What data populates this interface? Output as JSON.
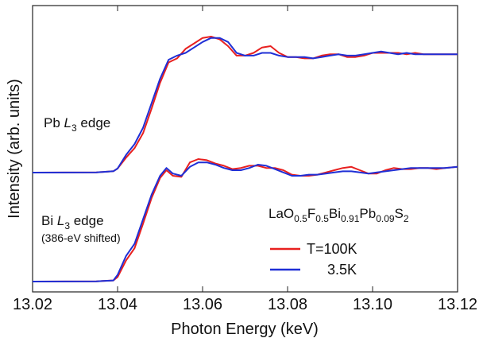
{
  "chart_data": {
    "type": "line",
    "xlabel": "Photon Energy (keV)",
    "ylabel": "Intensity (arb. units)",
    "xlim": [
      13.02,
      13.12
    ],
    "x_ticks": [
      "13.02",
      "13.04",
      "13.06",
      "13.08",
      "13.10",
      "13.12"
    ],
    "y_ticks_visible": false,
    "grid": false,
    "annotations": {
      "pb_main": "Pb ",
      "pb_sub": "3",
      "pb_L": "L",
      "pb_rest": " edge",
      "bi_main": "Bi ",
      "bi_L": "L",
      "bi_sub": "3",
      "bi_rest": " edge",
      "bi_note": "(386-eV shifted)",
      "formula": [
        {
          "t": "LaO",
          "sub": false
        },
        {
          "t": "0.5",
          "sub": true
        },
        {
          "t": "F",
          "sub": false
        },
        {
          "t": "0.5",
          "sub": true
        },
        {
          "t": "Bi",
          "sub": false
        },
        {
          "t": "0.91",
          "sub": true
        },
        {
          "t": "Pb",
          "sub": false
        },
        {
          "t": "0.09",
          "sub": true
        },
        {
          "t": "S",
          "sub": false
        },
        {
          "t": "2",
          "sub": true
        }
      ]
    },
    "legend": [
      {
        "label": "T=100K",
        "color": "#e8201f"
      },
      {
        "label": "3.5K",
        "color": "#1f2fd6"
      }
    ],
    "series": [
      {
        "name": "T=100K",
        "edge": "Pb",
        "color": "#e8201f",
        "x": [
          13.02,
          13.035,
          13.039,
          13.04,
          13.042,
          13.044,
          13.046,
          13.048,
          13.05,
          13.052,
          13.054,
          13.056,
          13.058,
          13.06,
          13.062,
          13.064,
          13.066,
          13.068,
          13.07,
          13.072,
          13.074,
          13.076,
          13.078,
          13.08,
          13.082,
          13.084,
          13.086,
          13.088,
          13.09,
          13.092,
          13.094,
          13.096,
          13.098,
          13.1,
          13.102,
          13.104,
          13.106,
          13.108,
          13.11,
          13.112,
          13.114,
          13.116,
          13.118,
          13.12
        ],
        "y": [
          0.0,
          0.002,
          0.01,
          0.03,
          0.11,
          0.18,
          0.29,
          0.47,
          0.66,
          0.81,
          0.84,
          0.91,
          0.95,
          0.99,
          1.0,
          0.98,
          0.93,
          0.86,
          0.86,
          0.88,
          0.92,
          0.93,
          0.88,
          0.85,
          0.85,
          0.84,
          0.84,
          0.86,
          0.87,
          0.87,
          0.85,
          0.85,
          0.86,
          0.88,
          0.88,
          0.88,
          0.88,
          0.87,
          0.88,
          0.87,
          0.87,
          0.87,
          0.87,
          0.87
        ]
      },
      {
        "name": "3.5K",
        "edge": "Pb",
        "color": "#1f2fd6",
        "x": [
          13.02,
          13.035,
          13.039,
          13.04,
          13.042,
          13.044,
          13.046,
          13.048,
          13.05,
          13.052,
          13.054,
          13.056,
          13.058,
          13.06,
          13.062,
          13.064,
          13.066,
          13.068,
          13.07,
          13.072,
          13.074,
          13.076,
          13.078,
          13.08,
          13.082,
          13.084,
          13.086,
          13.088,
          13.09,
          13.092,
          13.094,
          13.096,
          13.098,
          13.1,
          13.102,
          13.104,
          13.106,
          13.108,
          13.11,
          13.112,
          13.114,
          13.116,
          13.118,
          13.12
        ],
        "y": [
          0.0,
          0.002,
          0.01,
          0.03,
          0.13,
          0.21,
          0.33,
          0.51,
          0.69,
          0.83,
          0.86,
          0.88,
          0.92,
          0.96,
          0.99,
          0.99,
          0.96,
          0.88,
          0.86,
          0.86,
          0.88,
          0.88,
          0.86,
          0.85,
          0.85,
          0.85,
          0.84,
          0.85,
          0.86,
          0.87,
          0.86,
          0.86,
          0.87,
          0.88,
          0.89,
          0.88,
          0.87,
          0.88,
          0.87,
          0.87,
          0.87,
          0.87,
          0.87,
          0.87
        ]
      },
      {
        "name": "T=100K",
        "edge": "Bi",
        "color": "#e8201f",
        "x": [
          13.02,
          13.035,
          13.039,
          13.04,
          13.042,
          13.044,
          13.046,
          13.048,
          13.05,
          13.0515,
          13.053,
          13.055,
          13.057,
          13.059,
          13.061,
          13.063,
          13.065,
          13.067,
          13.069,
          13.071,
          13.073,
          13.075,
          13.077,
          13.079,
          13.081,
          13.083,
          13.085,
          13.087,
          13.089,
          13.091,
          13.093,
          13.095,
          13.097,
          13.099,
          13.101,
          13.103,
          13.105,
          13.107,
          13.109,
          13.111,
          13.113,
          13.115,
          13.117,
          13.12
        ],
        "y": [
          0.0,
          0.002,
          0.01,
          0.04,
          0.19,
          0.3,
          0.52,
          0.75,
          0.93,
          1.0,
          0.95,
          0.94,
          1.07,
          1.1,
          1.09,
          1.06,
          1.04,
          1.01,
          1.02,
          1.04,
          1.04,
          1.02,
          1.02,
          1.0,
          0.96,
          0.95,
          0.95,
          0.96,
          0.98,
          1.0,
          1.02,
          1.03,
          1.0,
          0.97,
          0.97,
          1.0,
          1.02,
          1.01,
          1.01,
          1.02,
          1.02,
          1.01,
          1.02,
          1.03
        ]
      },
      {
        "name": "3.5K",
        "edge": "Bi",
        "color": "#1f2fd6",
        "x": [
          13.02,
          13.035,
          13.039,
          13.04,
          13.042,
          13.044,
          13.046,
          13.048,
          13.05,
          13.0515,
          13.053,
          13.055,
          13.057,
          13.059,
          13.061,
          13.063,
          13.065,
          13.067,
          13.069,
          13.071,
          13.073,
          13.075,
          13.077,
          13.079,
          13.081,
          13.083,
          13.085,
          13.087,
          13.089,
          13.091,
          13.093,
          13.095,
          13.097,
          13.099,
          13.101,
          13.103,
          13.105,
          13.107,
          13.109,
          13.111,
          13.113,
          13.115,
          13.117,
          13.12
        ],
        "y": [
          0.0,
          0.002,
          0.01,
          0.06,
          0.23,
          0.34,
          0.56,
          0.78,
          0.95,
          1.02,
          0.97,
          0.95,
          1.03,
          1.07,
          1.07,
          1.05,
          1.02,
          1.0,
          1.0,
          1.02,
          1.05,
          1.04,
          1.01,
          0.98,
          0.95,
          0.95,
          0.96,
          0.96,
          0.97,
          0.98,
          0.99,
          0.99,
          0.98,
          0.97,
          0.98,
          0.99,
          1.0,
          1.01,
          1.02,
          1.02,
          1.02,
          1.02,
          1.02,
          1.03
        ]
      }
    ]
  }
}
